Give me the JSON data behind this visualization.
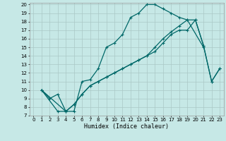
{
  "background_color": "#c6e8e6",
  "grid_color": "#aac8c6",
  "line_color": "#006868",
  "xlabel": "Humidex (Indice chaleur)",
  "xlim": [
    -0.5,
    23.5
  ],
  "ylim": [
    7,
    20.2
  ],
  "xticks": [
    0,
    1,
    2,
    3,
    4,
    5,
    6,
    7,
    8,
    9,
    10,
    11,
    12,
    13,
    14,
    15,
    16,
    17,
    18,
    19,
    20,
    21,
    22,
    23
  ],
  "yticks": [
    7,
    8,
    9,
    10,
    11,
    12,
    13,
    14,
    15,
    16,
    17,
    18,
    19,
    20
  ],
  "line1_x": [
    1,
    2,
    3,
    4,
    5,
    6,
    7,
    8,
    9,
    10,
    11,
    12,
    13,
    14,
    15,
    16,
    17,
    18,
    19,
    21
  ],
  "line1_y": [
    10,
    9,
    9.5,
    7.5,
    7.5,
    11,
    11.2,
    12.5,
    15,
    15.5,
    16.5,
    18.5,
    19,
    20,
    20,
    19.5,
    19,
    18.5,
    18.2,
    15
  ],
  "line2_x": [
    1,
    3,
    4,
    5,
    6,
    7,
    8,
    9,
    10,
    11,
    12,
    13,
    14,
    15,
    16,
    17,
    18,
    19,
    20,
    21,
    22,
    23
  ],
  "line2_y": [
    10,
    7.5,
    7.5,
    8.3,
    9.5,
    10.5,
    11.0,
    11.5,
    12.0,
    12.5,
    13.0,
    13.5,
    14.0,
    14.5,
    15.5,
    16.5,
    17.0,
    17.0,
    18.2,
    15.2,
    11.0,
    12.5
  ],
  "line3_x": [
    1,
    4,
    5,
    6,
    7,
    8,
    9,
    10,
    11,
    12,
    13,
    14,
    15,
    16,
    17,
    18,
    19,
    20,
    21,
    22,
    23
  ],
  "line3_y": [
    10,
    7.5,
    8.3,
    9.5,
    10.5,
    11.0,
    11.5,
    12.0,
    12.5,
    13.0,
    13.5,
    14.0,
    15.0,
    16.0,
    16.8,
    17.5,
    18.2,
    18.2,
    15.2,
    11.0,
    12.5
  ]
}
